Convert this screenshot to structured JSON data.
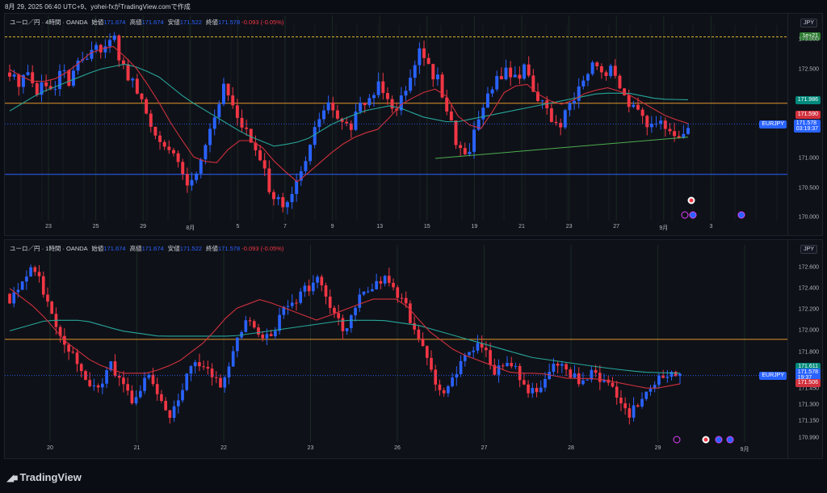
{
  "header": {
    "text": "8月 29, 2025 06:40 UTC+9、yohei-fxがTradingView.comで作成"
  },
  "brand": {
    "name": "TradingView",
    "logo_icon": "tradingview-logo-icon"
  },
  "colors": {
    "bull": "#2962ff",
    "bear": "#f23645",
    "ma_fast": "#d0313d",
    "ma_slow": "#26a69a",
    "level": "#e0962a",
    "support": "#2962ff",
    "trend": "#4caf50",
    "session": "#2a3a2f"
  },
  "panels": [
    {
      "id": "p1",
      "legend": {
        "title": "ユーロ／円 · 4時間 · OANDA",
        "o_label": "始値",
        "o": "171.674",
        "h_label": "高値",
        "h": "171.674",
        "l_label": "安値",
        "l": "171.522",
        "c_label": "終値",
        "c": "171.578",
        "chg": "-0.093 (-0.05%)"
      },
      "currency": "JPY",
      "badge": "1e+21",
      "y_ticks": [
        "173.000",
        "172.500",
        "172.000",
        "171.500",
        "171.000",
        "170.500",
        "170.000"
      ],
      "x_ticks": [
        "23",
        "25",
        "29",
        "8月",
        "5",
        "7",
        "9",
        "13",
        "15",
        "19",
        "21",
        "23",
        "27",
        "9月",
        "3"
      ],
      "tags": {
        "ma_slow": "171.986",
        "ma_fast": "171.590",
        "symbol": "EURJPY",
        "price": "171.578",
        "countdown": "03:19:37"
      }
    },
    {
      "id": "p2",
      "legend": {
        "title": "ユーロ／円 · 1時間 · OANDA",
        "o_label": "始値",
        "o": "171.674",
        "h_label": "高値",
        "h": "171.674",
        "l_label": "安値",
        "l": "171.522",
        "c_label": "終値",
        "c": "171.578",
        "chg": "-0.093 (-0.05%)"
      },
      "currency": "JPY",
      "y_ticks": [
        "172.600",
        "172.400",
        "172.200",
        "172.000",
        "171.800",
        "171.450",
        "171.300",
        "171.150",
        "170.990"
      ],
      "x_ticks": [
        "20",
        "21",
        "22",
        "23",
        "26",
        "27",
        "28",
        "29",
        "9月"
      ],
      "tags": {
        "ma_slow": "171.611",
        "symbol": "EURJPY",
        "price": "171.578",
        "countdown": "19:37",
        "ma_fast": "171.506"
      }
    }
  ],
  "chart_data": [
    {
      "type": "candlestick",
      "title": "ユーロ／円 · 4時間 · OANDA",
      "ylim": [
        169.95,
        173.25
      ],
      "dotted_level": 173.05,
      "level_line": 171.93,
      "support_line": 170.73,
      "trendline": [
        [
          171.0,
          171.36
        ]
      ],
      "last_close": 171.578,
      "close_path": [
        172.4,
        172.3,
        172.5,
        172.1,
        172.3,
        172.0,
        172.5,
        172.2,
        172.7,
        172.6,
        173.0,
        172.8,
        173.1,
        172.6,
        172.3,
        172.1,
        171.7,
        171.4,
        171.3,
        171.0,
        170.8,
        170.5,
        170.9,
        171.4,
        171.8,
        172.2,
        171.9,
        171.6,
        171.3,
        171.0,
        170.6,
        170.3,
        170.1,
        170.4,
        170.8,
        171.2,
        171.7,
        171.9,
        171.7,
        171.5,
        171.6,
        171.9,
        172.0,
        172.3,
        172.1,
        171.8,
        172.2,
        172.6,
        172.9,
        172.4,
        172.3,
        171.8,
        171.3,
        171.0,
        171.4,
        171.9,
        172.1,
        172.4,
        172.5,
        172.3,
        172.6,
        172.2,
        171.9,
        171.7,
        171.5,
        171.8,
        172.1,
        172.3,
        172.6,
        172.4,
        172.5,
        172.2,
        172.0,
        171.8,
        171.6,
        171.7,
        171.5,
        171.4,
        171.3,
        171.58
      ],
      "ma_fast_path": [
        172.5,
        172.3,
        172.3,
        172.5,
        172.8,
        172.9,
        172.6,
        172.1,
        171.5,
        171.0,
        170.9,
        171.3,
        171.3,
        170.9,
        170.6,
        170.9,
        171.2,
        171.4,
        171.5,
        171.9,
        172.1,
        172.2,
        171.6,
        171.5,
        172.1,
        172.3,
        172.0,
        171.9,
        172.1,
        172.2,
        172.1,
        171.9,
        171.7,
        171.59
      ],
      "ma_slow_path": [
        171.8,
        172.1,
        172.3,
        172.5,
        172.6,
        172.4,
        172.0,
        171.7,
        171.4,
        171.2,
        171.3,
        171.6,
        171.8,
        171.9,
        171.7,
        171.6,
        171.7,
        171.8,
        171.9,
        172.0,
        172.1,
        172.1,
        172.0,
        171.99
      ]
    },
    {
      "type": "candlestick",
      "title": "ユーロ／円 · 1時間 · OANDA",
      "ylim": [
        170.95,
        172.72
      ],
      "level_line": 171.92,
      "last_close": 171.578,
      "close_path": [
        172.3,
        172.5,
        172.6,
        172.3,
        172.0,
        171.8,
        171.6,
        171.4,
        171.7,
        171.5,
        171.3,
        171.6,
        171.4,
        171.2,
        171.5,
        171.7,
        171.6,
        171.5,
        171.8,
        172.1,
        172.0,
        171.9,
        172.2,
        172.3,
        172.4,
        172.5,
        172.2,
        172.0,
        172.3,
        172.4,
        172.5,
        172.4,
        172.2,
        171.9,
        171.6,
        171.4,
        171.6,
        171.8,
        171.9,
        171.6,
        171.7,
        171.6,
        171.4,
        171.5,
        171.7,
        171.6,
        171.5,
        171.6,
        171.5,
        171.4,
        171.2,
        171.4,
        171.5,
        171.6,
        171.578
      ],
      "ma_fast_path": [
        172.4,
        172.2,
        171.9,
        171.7,
        171.6,
        171.6,
        171.7,
        171.9,
        172.2,
        172.3,
        172.2,
        172.1,
        172.2,
        172.3,
        172.3,
        172.0,
        171.8,
        171.7,
        171.6,
        171.6,
        171.55,
        171.55,
        171.5,
        171.45,
        171.5
      ],
      "ma_slow_path": [
        172.0,
        172.1,
        172.1,
        172.0,
        171.95,
        171.95,
        171.95,
        172.0,
        172.05,
        172.1,
        172.1,
        172.05,
        171.95,
        171.85,
        171.75,
        171.7,
        171.65,
        171.61,
        171.6
      ]
    }
  ]
}
